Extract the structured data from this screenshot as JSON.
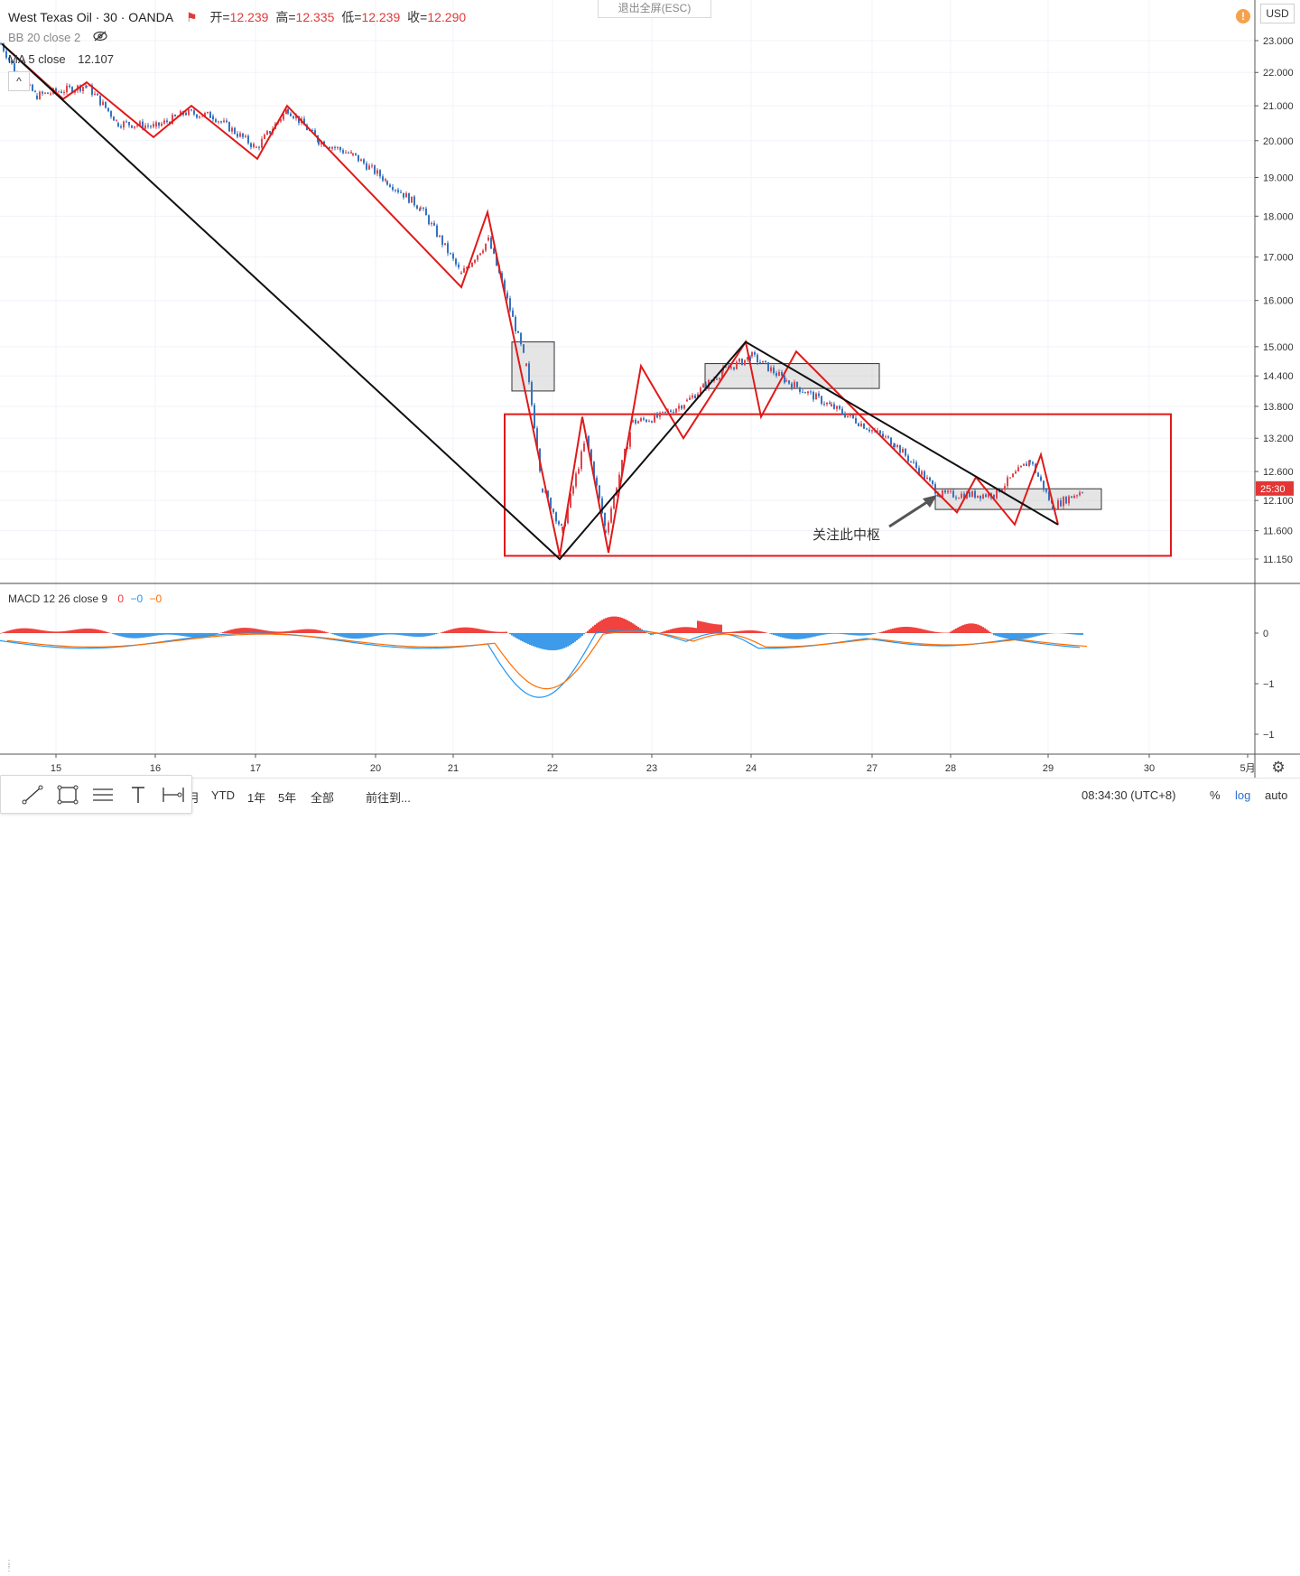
{
  "header": {
    "symbol": "West Texas Oil · 30 · OANDA",
    "open_label": "开=",
    "open": "12.239",
    "high_label": "高=",
    "high": "12.335",
    "low_label": "低=",
    "low": "12.239",
    "close_label": "收=",
    "close": "12.290",
    "bb_label": "BB 20 close 2",
    "ma_label": "MA 5 close",
    "ma_value": "12.107",
    "exit_fullscreen": "退出全屏(ESC)",
    "currency": "USD"
  },
  "macd": {
    "label": "MACD 12 26 close 9",
    "values": [
      "0",
      "−0",
      "−0"
    ],
    "colors": [
      "#f23645",
      "#2196f3",
      "#ff6d00"
    ]
  },
  "price_axis": {
    "ticks": [
      "23.000",
      "22.000",
      "21.000",
      "20.000",
      "19.000",
      "18.000",
      "17.000",
      "16.000",
      "15.000",
      "14.400",
      "13.800",
      "13.200",
      "12.600",
      "12.100",
      "11.600",
      "11.150"
    ],
    "countdown": "25:30",
    "countdown_color": "#e33535"
  },
  "macd_axis": {
    "ticks": [
      "0",
      "−1",
      "−1"
    ]
  },
  "time_axis": {
    "ticks": [
      "15",
      "16",
      "17",
      "20",
      "21",
      "22",
      "23",
      "24",
      "27",
      "28",
      "29",
      "30",
      "5月"
    ]
  },
  "annotation": {
    "text": "关注此中枢"
  },
  "bottom_bar": {
    "ranges": [
      "月",
      "YTD",
      "1年",
      "5年",
      "全部"
    ],
    "goto": "前往到...",
    "clock": "08:34:30 (UTC+8)",
    "percent": "%",
    "log": "log",
    "auto": "auto"
  },
  "colors": {
    "up_candle": "#e0464e",
    "down_candle": "#3573c0",
    "zigzag_red": "#e01919",
    "trend_black": "#111111",
    "macd_hist_up": "#f0423e",
    "macd_hist_down": "#3d9be9",
    "macd_line": "#2196f3",
    "signal_line": "#ff6d00"
  },
  "chart_data": {
    "type": "candlestick",
    "title": "West Texas Oil · 30 · OANDA",
    "x_categories": [
      "15",
      "16",
      "17",
      "20",
      "21",
      "22",
      "23",
      "24",
      "27",
      "28",
      "29",
      "30"
    ],
    "y_scale": "log",
    "ylim": [
      11.0,
      23.4
    ],
    "red_zigzag_pivots": [
      {
        "x": "15",
        "y": 22.9
      },
      {
        "x": "15",
        "y": 21.2
      },
      {
        "x": "15",
        "y": 21.7
      },
      {
        "x": "16",
        "y": 20.1
      },
      {
        "x": "16",
        "y": 21.0
      },
      {
        "x": "17",
        "y": 19.5
      },
      {
        "x": "17",
        "y": 21.0
      },
      {
        "x": "20",
        "y": 19.4
      },
      {
        "x": "21",
        "y": 16.3
      },
      {
        "x": "21",
        "y": 18.1
      },
      {
        "x": "22",
        "y": 11.2
      },
      {
        "x": "22",
        "y": 13.6
      },
      {
        "x": "22",
        "y": 11.25
      },
      {
        "x": "23",
        "y": 14.6
      },
      {
        "x": "23",
        "y": 13.2
      },
      {
        "x": "24",
        "y": 15.1
      },
      {
        "x": "24",
        "y": 13.6
      },
      {
        "x": "24",
        "y": 14.9
      },
      {
        "x": "28",
        "y": 11.9
      },
      {
        "x": "28",
        "y": 12.5
      },
      {
        "x": "29",
        "y": 11.7
      },
      {
        "x": "29",
        "y": 12.9
      },
      {
        "x": "29",
        "y": 11.7
      }
    ],
    "black_trend_pivots": [
      {
        "x": "15",
        "y": 22.9
      },
      {
        "x": "22",
        "y": 11.15
      },
      {
        "x": "24",
        "y": 15.1
      },
      {
        "x": "29",
        "y": 11.7
      }
    ],
    "zones": [
      {
        "name": "zone-big",
        "from": "22",
        "to": "30",
        "low": 11.2,
        "high": 13.65,
        "color": "#e01919"
      },
      {
        "name": "zone-1",
        "from": "21",
        "to": "22",
        "low": 14.1,
        "high": 15.1,
        "color": "#333333"
      },
      {
        "name": "zone-2",
        "from": "23",
        "to": "27",
        "low": 14.15,
        "high": 14.65,
        "color": "#333333"
      },
      {
        "name": "zone-3",
        "from": "28",
        "to": "29",
        "low": 11.95,
        "high": 12.3,
        "color": "#333333"
      }
    ],
    "price_path": [
      {
        "x": "15",
        "close": 22.9
      },
      {
        "x": "15",
        "close": 21.8
      },
      {
        "x": "15",
        "close": 21.3
      },
      {
        "x": "15",
        "close": 21.6
      },
      {
        "x": "16",
        "close": 20.5
      },
      {
        "x": "16",
        "close": 20.4
      },
      {
        "x": "16",
        "close": 20.8
      },
      {
        "x": "17",
        "close": 20.7
      },
      {
        "x": "17",
        "close": 19.8
      },
      {
        "x": "17",
        "close": 20.9
      },
      {
        "x": "20",
        "close": 20.0
      },
      {
        "x": "20",
        "close": 19.6
      },
      {
        "x": "20",
        "close": 18.9
      },
      {
        "x": "21",
        "close": 18.2
      },
      {
        "x": "21",
        "close": 16.6
      },
      {
        "x": "21",
        "close": 17.4
      },
      {
        "x": "22",
        "close": 14.6
      },
      {
        "x": "22",
        "close": 12.3
      },
      {
        "x": "22",
        "close": 11.6
      },
      {
        "x": "22",
        "close": 13.2
      },
      {
        "x": "22",
        "close": 11.6
      },
      {
        "x": "23",
        "close": 13.5
      },
      {
        "x": "23",
        "close": 13.6
      },
      {
        "x": "23",
        "close": 13.9
      },
      {
        "x": "24",
        "close": 14.5
      },
      {
        "x": "24",
        "close": 14.8
      },
      {
        "x": "24",
        "close": 14.3
      },
      {
        "x": "27",
        "close": 13.8
      },
      {
        "x": "27",
        "close": 13.1
      },
      {
        "x": "28",
        "close": 12.2
      },
      {
        "x": "28",
        "close": 12.2
      },
      {
        "x": "29",
        "close": 12.8
      },
      {
        "x": "29",
        "close": 12.0
      },
      {
        "x": "29",
        "close": 12.29
      }
    ],
    "macd": {
      "fast": 12,
      "slow": 26,
      "signal": 9,
      "ylim_label": [
        "0",
        "−1",
        "−1"
      ]
    }
  }
}
